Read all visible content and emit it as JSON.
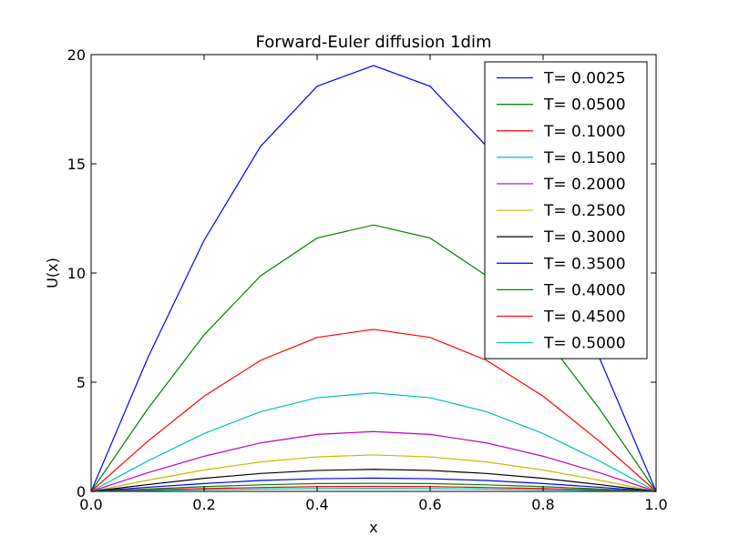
{
  "chart_data": {
    "type": "line",
    "title": "Forward-Euler diffusion 1dim",
    "xlabel": "x",
    "ylabel": "U(x)",
    "xlim": [
      0.0,
      1.0
    ],
    "ylim": [
      0,
      20
    ],
    "xticks": [
      "0.0",
      "0.2",
      "0.4",
      "0.6",
      "0.8",
      "1.0"
    ],
    "yticks": [
      "0",
      "5",
      "10",
      "15",
      "20"
    ],
    "grid": false,
    "legend_position": "top-right",
    "x": [
      0.0,
      0.1,
      0.2,
      0.3,
      0.4,
      0.5,
      0.6,
      0.7,
      0.8,
      0.9,
      1.0
    ],
    "series": [
      {
        "name": "T= 0.0025",
        "color": "#0000ff",
        "values": [
          0,
          6.1,
          11.5,
          15.8,
          18.55,
          19.5,
          18.55,
          15.8,
          11.5,
          6.1,
          0
        ]
      },
      {
        "name": "T= 0.0500",
        "color": "#008000",
        "values": [
          0,
          3.77,
          7.17,
          9.87,
          11.6,
          12.2,
          11.6,
          9.87,
          7.17,
          3.77,
          0
        ]
      },
      {
        "name": "T= 0.1000",
        "color": "#ff0000",
        "values": [
          0,
          2.29,
          4.36,
          6.0,
          7.05,
          7.42,
          7.05,
          6.0,
          4.36,
          2.29,
          0
        ]
      },
      {
        "name": "T= 0.1500",
        "color": "#00bfbf",
        "values": [
          0,
          1.39,
          2.65,
          3.65,
          4.29,
          4.51,
          4.29,
          3.65,
          2.65,
          1.39,
          0
        ]
      },
      {
        "name": "T= 0.2000",
        "color": "#bf00bf",
        "values": [
          0,
          0.85,
          1.61,
          2.22,
          2.61,
          2.74,
          2.61,
          2.22,
          1.61,
          0.85,
          0
        ]
      },
      {
        "name": "T= 0.2500",
        "color": "#bfbf00",
        "values": [
          0,
          0.51,
          0.98,
          1.35,
          1.58,
          1.67,
          1.58,
          1.35,
          0.98,
          0.51,
          0
        ]
      },
      {
        "name": "T= 0.3000",
        "color": "#000000",
        "values": [
          0,
          0.31,
          0.6,
          0.82,
          0.96,
          1.01,
          0.96,
          0.82,
          0.6,
          0.31,
          0
        ]
      },
      {
        "name": "T= 0.3500",
        "color": "#0000ff",
        "values": [
          0,
          0.19,
          0.36,
          0.5,
          0.58,
          0.61,
          0.58,
          0.5,
          0.36,
          0.19,
          0
        ]
      },
      {
        "name": "T= 0.4000",
        "color": "#008000",
        "values": [
          0,
          0.11,
          0.22,
          0.3,
          0.36,
          0.37,
          0.36,
          0.3,
          0.22,
          0.11,
          0
        ]
      },
      {
        "name": "T= 0.4500",
        "color": "#ff0000",
        "values": [
          0,
          0.07,
          0.13,
          0.18,
          0.22,
          0.23,
          0.22,
          0.18,
          0.13,
          0.07,
          0
        ]
      },
      {
        "name": "T= 0.5000",
        "color": "#00bfbf",
        "values": [
          0,
          0.04,
          0.08,
          0.11,
          0.13,
          0.14,
          0.13,
          0.11,
          0.08,
          0.04,
          0
        ]
      }
    ]
  }
}
